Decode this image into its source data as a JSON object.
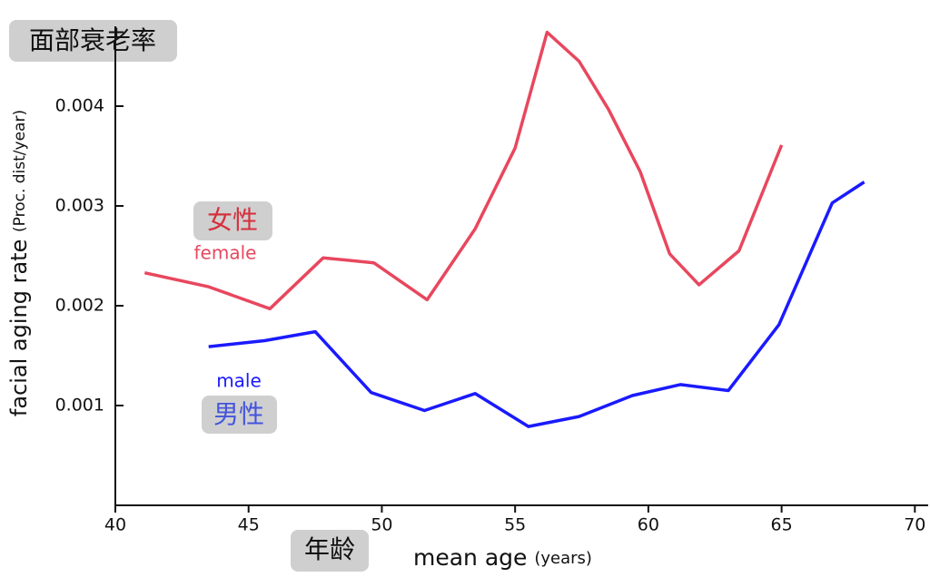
{
  "chart_data": {
    "type": "line",
    "title": "面部衰老率",
    "y_label": "facial aging rate",
    "y_label_unit": "(Proc. dist/year)",
    "x_label": "mean age",
    "x_label_unit": "(years)",
    "x_label_cn": "年龄",
    "annotations": [
      "女性",
      "男性"
    ],
    "xlim": [
      40,
      70.5
    ],
    "xticks": [
      40,
      45,
      50,
      55,
      60,
      65,
      70
    ],
    "ylim": [
      0,
      0.0048
    ],
    "yticks": [
      0.001,
      0.002,
      0.003,
      0.004
    ],
    "series": [
      {
        "name": "female",
        "color": "#e8475e",
        "x": [
          41.1,
          43.5,
          45.8,
          47.8,
          49.7,
          51.7,
          53.5,
          55.0,
          56.2,
          57.4,
          58.5,
          59.7,
          60.8,
          61.9,
          63.4,
          65.0
        ],
        "values": [
          0.00233,
          0.00219,
          0.00197,
          0.00248,
          0.00243,
          0.00206,
          0.00277,
          0.00358,
          0.00474,
          0.00445,
          0.00397,
          0.00334,
          0.00252,
          0.00221,
          0.00255,
          0.00361
        ]
      },
      {
        "name": "male",
        "color": "#1a1aff",
        "x": [
          43.5,
          45.6,
          47.5,
          49.6,
          51.6,
          53.5,
          55.5,
          57.4,
          59.4,
          61.2,
          63.0,
          64.9,
          66.9,
          68.1
        ],
        "values": [
          0.00159,
          0.00165,
          0.00174,
          0.00113,
          0.00095,
          0.00112,
          0.00079,
          0.00089,
          0.0011,
          0.00121,
          0.00115,
          0.00181,
          0.00303,
          0.00324
        ]
      }
    ]
  }
}
